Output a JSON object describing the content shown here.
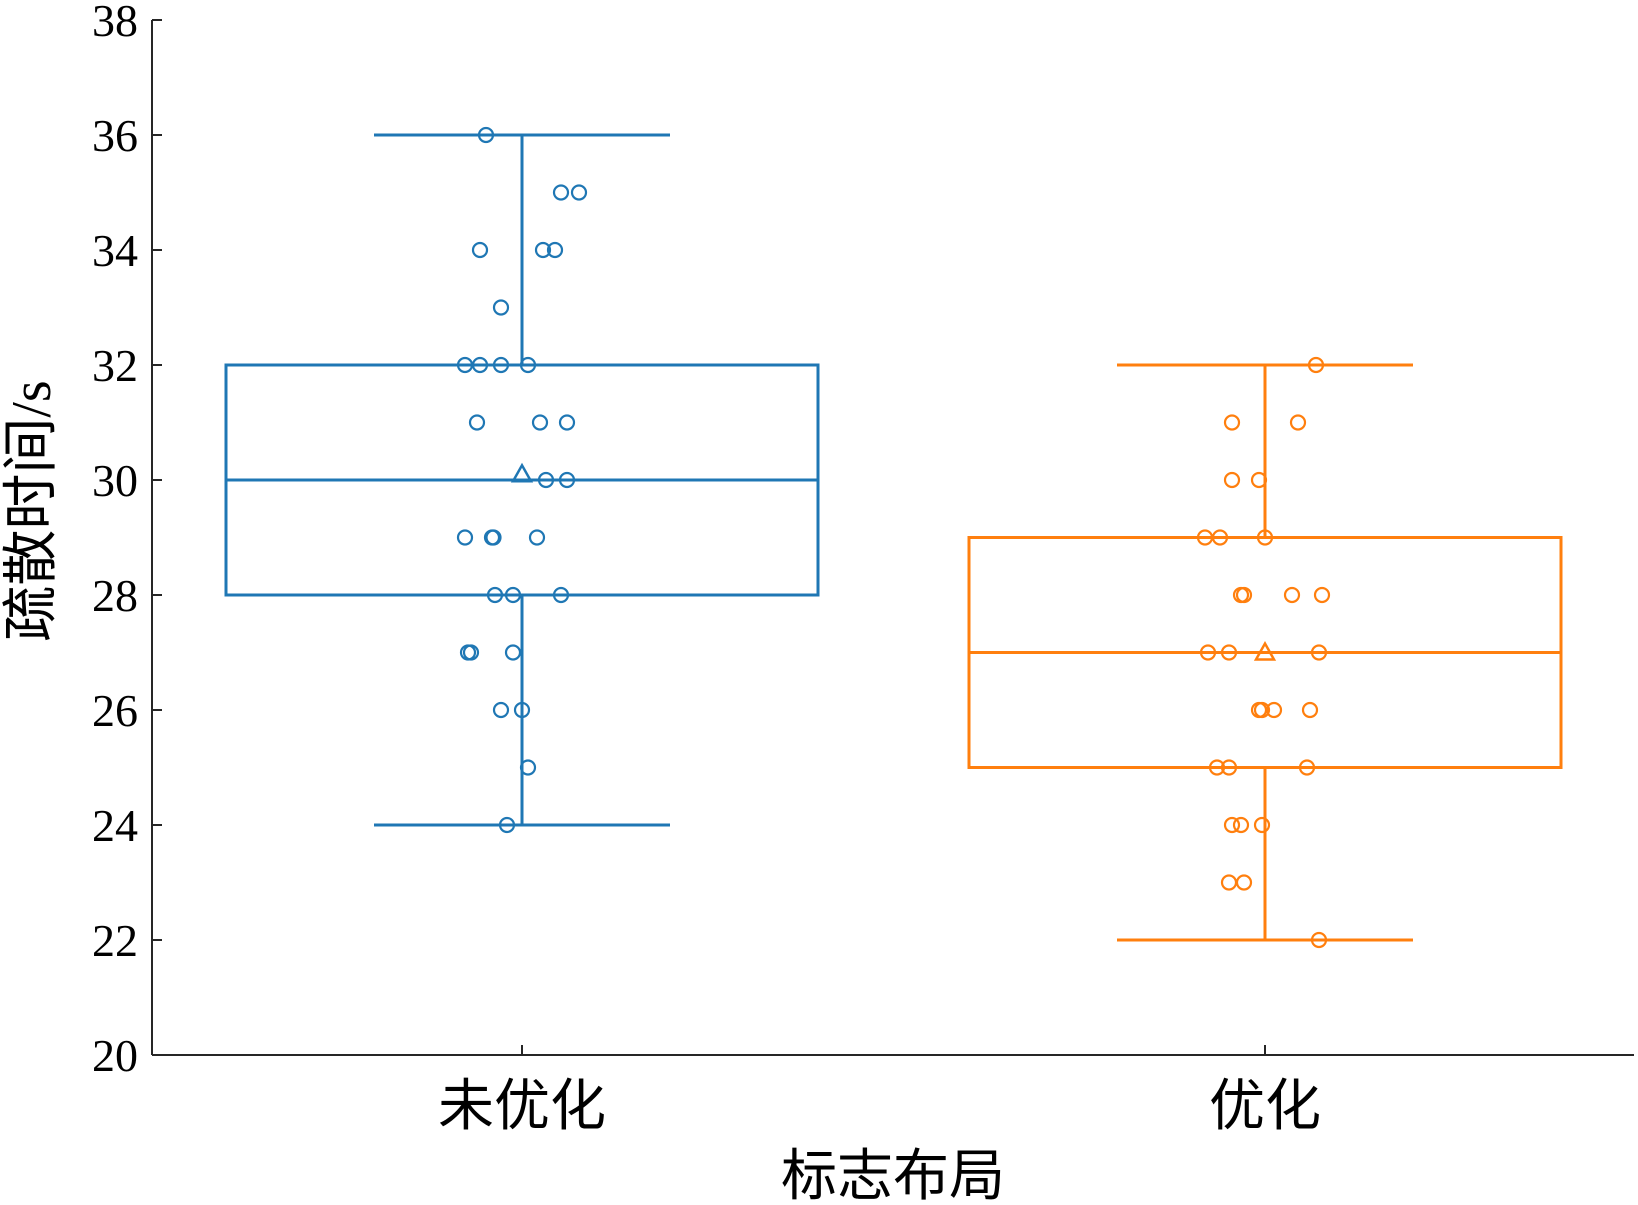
{
  "chart_data": {
    "type": "box",
    "xlabel": "标志布局",
    "ylabel": "疏散时间/s",
    "ylim": [
      20,
      38
    ],
    "yticks": [
      20,
      22,
      24,
      26,
      28,
      30,
      32,
      34,
      36,
      38
    ],
    "ytick_labels": [
      "20",
      "22",
      "24",
      "26",
      "28",
      "30",
      "32",
      "34",
      "36",
      "38"
    ],
    "categories": [
      "未优化",
      "优化"
    ],
    "grid": false,
    "series": [
      {
        "category": "未优化",
        "color": "#1f77b4",
        "whisker_low": 24,
        "q1": 28,
        "median": 30,
        "q3": 32,
        "whisker_high": 36,
        "mean": 30.1,
        "points": [
          {
            "x": -0.12,
            "y": 36
          },
          {
            "x": 0.13,
            "y": 35
          },
          {
            "x": 0.19,
            "y": 35
          },
          {
            "x": -0.14,
            "y": 34
          },
          {
            "x": 0.07,
            "y": 34
          },
          {
            "x": 0.11,
            "y": 34
          },
          {
            "x": -0.07,
            "y": 33
          },
          {
            "x": -0.19,
            "y": 32
          },
          {
            "x": -0.14,
            "y": 32
          },
          {
            "x": -0.07,
            "y": 32
          },
          {
            "x": 0.02,
            "y": 32
          },
          {
            "x": -0.15,
            "y": 31
          },
          {
            "x": 0.06,
            "y": 31
          },
          {
            "x": 0.15,
            "y": 31
          },
          {
            "x": 0.08,
            "y": 30
          },
          {
            "x": 0.15,
            "y": 30
          },
          {
            "x": -0.19,
            "y": 29
          },
          {
            "x": -0.1,
            "y": 29
          },
          {
            "x": -0.095,
            "y": 29
          },
          {
            "x": 0.05,
            "y": 29
          },
          {
            "x": -0.09,
            "y": 28
          },
          {
            "x": -0.03,
            "y": 28
          },
          {
            "x": 0.13,
            "y": 28
          },
          {
            "x": -0.18,
            "y": 27
          },
          {
            "x": -0.17,
            "y": 27
          },
          {
            "x": -0.03,
            "y": 27
          },
          {
            "x": -0.07,
            "y": 26
          },
          {
            "x": 0.0,
            "y": 26
          },
          {
            "x": 0.02,
            "y": 25
          },
          {
            "x": -0.05,
            "y": 24
          }
        ]
      },
      {
        "category": "优化",
        "color": "#ff7f0e",
        "whisker_low": 22,
        "q1": 25,
        "median": 27,
        "q3": 29,
        "whisker_high": 32,
        "mean": 27,
        "points": [
          {
            "x": 0.17,
            "y": 32
          },
          {
            "x": -0.11,
            "y": 31
          },
          {
            "x": 0.11,
            "y": 31
          },
          {
            "x": -0.11,
            "y": 30
          },
          {
            "x": -0.02,
            "y": 30
          },
          {
            "x": -0.2,
            "y": 29
          },
          {
            "x": -0.15,
            "y": 29
          },
          {
            "x": 0.0,
            "y": 29
          },
          {
            "x": -0.08,
            "y": 28
          },
          {
            "x": -0.07,
            "y": 28
          },
          {
            "x": 0.09,
            "y": 28
          },
          {
            "x": 0.19,
            "y": 28
          },
          {
            "x": -0.19,
            "y": 27
          },
          {
            "x": -0.12,
            "y": 27
          },
          {
            "x": 0.18,
            "y": 27
          },
          {
            "x": -0.02,
            "y": 26
          },
          {
            "x": -0.01,
            "y": 26
          },
          {
            "x": 0.03,
            "y": 26
          },
          {
            "x": 0.15,
            "y": 26
          },
          {
            "x": -0.16,
            "y": 25
          },
          {
            "x": -0.12,
            "y": 25
          },
          {
            "x": 0.14,
            "y": 25
          },
          {
            "x": -0.11,
            "y": 24
          },
          {
            "x": -0.08,
            "y": 24
          },
          {
            "x": -0.01,
            "y": 24
          },
          {
            "x": -0.12,
            "y": 23
          },
          {
            "x": -0.07,
            "y": 23
          },
          {
            "x": 0.18,
            "y": 22
          }
        ]
      }
    ]
  }
}
